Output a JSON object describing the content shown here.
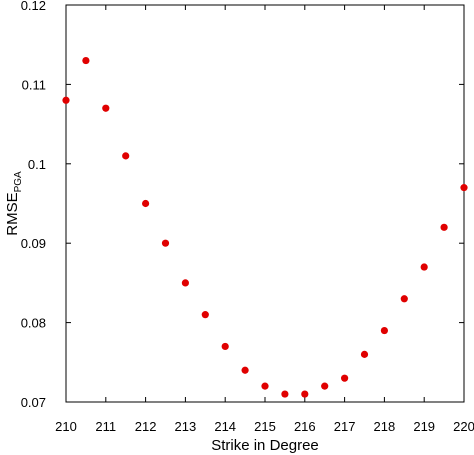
{
  "chart_data": {
    "type": "scatter",
    "title": "",
    "xlabel": "Strike in Degree",
    "ylabel": "RMSE",
    "ylabel_subscript": "PGA",
    "xlim": [
      210,
      220
    ],
    "ylim": [
      0.07,
      0.12
    ],
    "x_ticks": [
      210,
      211,
      212,
      213,
      214,
      215,
      216,
      217,
      218,
      219,
      220
    ],
    "x_tick_labels": [
      "210",
      "211",
      "212",
      "213",
      "214",
      "215",
      "216",
      "217",
      "218",
      "219",
      "220"
    ],
    "y_ticks": [
      0.07,
      0.08,
      0.09,
      0.1,
      0.11,
      0.12
    ],
    "y_tick_labels": [
      "0.07",
      "0.08",
      "0.09",
      "0.1",
      "0.11",
      "0.12"
    ],
    "grid": false,
    "legend": "none",
    "marker_color": "#e00000",
    "series": [
      {
        "x": [
          210,
          210.5,
          211,
          211.5,
          212,
          212.5,
          213,
          213.5,
          214,
          214.5,
          215,
          215.5,
          216,
          216.5,
          217,
          217.5,
          218,
          218.5,
          219,
          219.5,
          220
        ],
        "y": [
          0.108,
          0.113,
          0.107,
          0.101,
          0.095,
          0.09,
          0.085,
          0.081,
          0.077,
          0.074,
          0.072,
          0.071,
          0.071,
          0.072,
          0.073,
          0.076,
          0.079,
          0.083,
          0.087,
          0.092,
          0.097
        ]
      }
    ]
  }
}
